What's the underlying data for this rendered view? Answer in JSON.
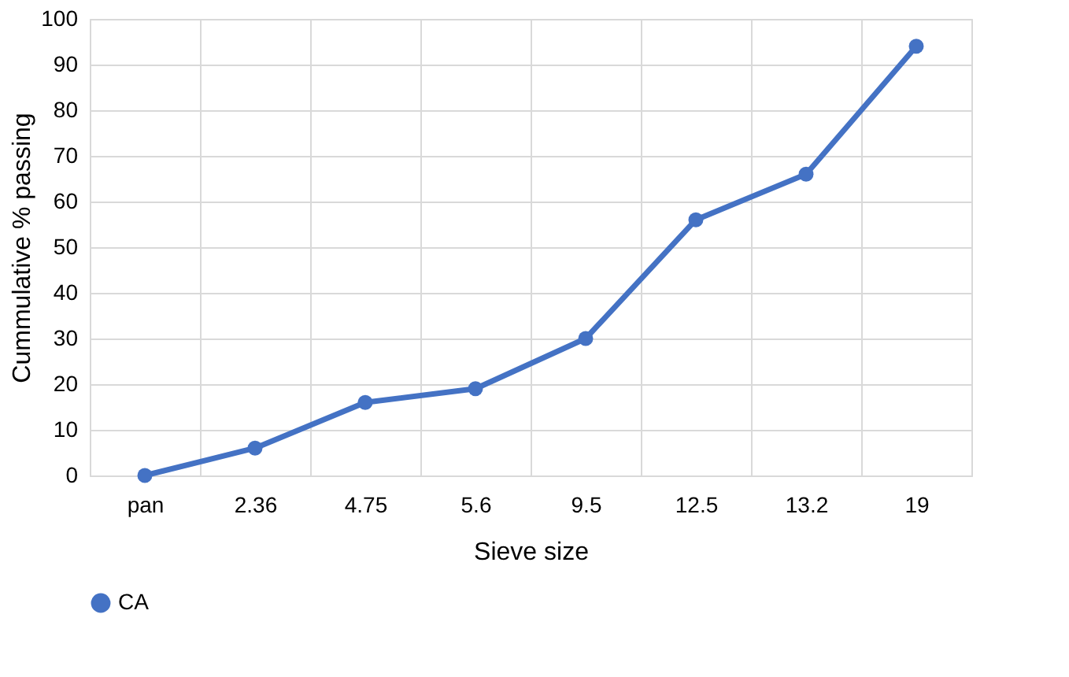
{
  "chart_data": {
    "type": "line",
    "xlabel": "Sieve size",
    "ylabel": "Cummulative % passing",
    "categories": [
      "pan",
      "2.36",
      "4.75",
      "5.6",
      "9.5",
      "12.5",
      "13.2",
      "19"
    ],
    "series": [
      {
        "name": "CA",
        "color": "#4472c4",
        "values": [
          0,
          6,
          16,
          19,
          30,
          56,
          66,
          94
        ]
      }
    ],
    "ylim": [
      0,
      100
    ],
    "yticks": [
      0,
      10,
      20,
      30,
      40,
      50,
      60,
      70,
      80,
      90,
      100
    ],
    "grid": true,
    "legend": "bottom",
    "marker": "circle",
    "line_style": "solid"
  }
}
